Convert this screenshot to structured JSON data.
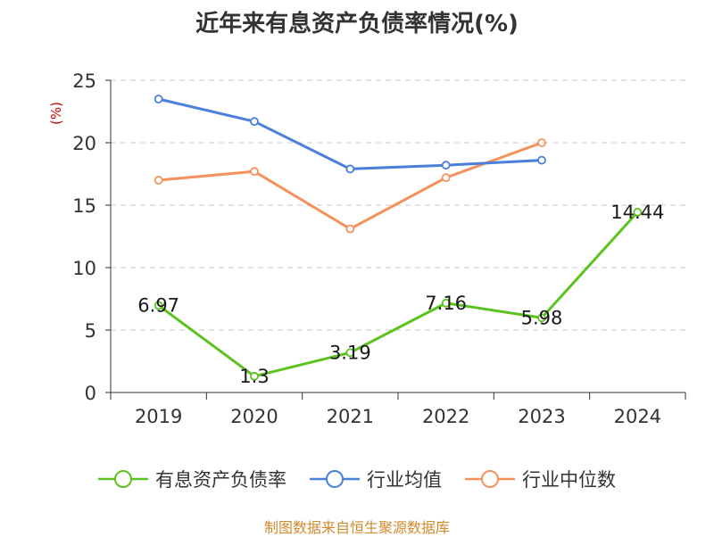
{
  "title": "近年来有息资产负债率情况(%)",
  "source": "制图数据来自恒生聚源数据库",
  "chart_data": {
    "type": "line",
    "title": "近年来有息资产负债率情况(%)",
    "ylabel": "(%)",
    "xlabel": "",
    "categories": [
      "2019",
      "2020",
      "2021",
      "2022",
      "2023",
      "2024"
    ],
    "ylim": [
      0,
      25
    ],
    "yticks": [
      "0",
      "5",
      "10",
      "15",
      "20",
      "25"
    ],
    "grid": true,
    "legend": "bottom",
    "series": [
      {
        "name": "有息资产负债率",
        "color": "#5cc21f",
        "values": [
          6.97,
          1.3,
          3.19,
          7.16,
          5.98,
          14.44
        ],
        "labels": [
          "6.97",
          "1.3",
          "3.19",
          "7.16",
          "5.98",
          "14.44"
        ]
      },
      {
        "name": "行业均值",
        "color": "#4a7fdb",
        "values": [
          23.5,
          21.7,
          17.9,
          18.2,
          18.6,
          null
        ]
      },
      {
        "name": "行业中位数",
        "color": "#f5915a",
        "values": [
          17.0,
          17.7,
          13.1,
          17.2,
          20.0,
          null
        ]
      }
    ]
  }
}
